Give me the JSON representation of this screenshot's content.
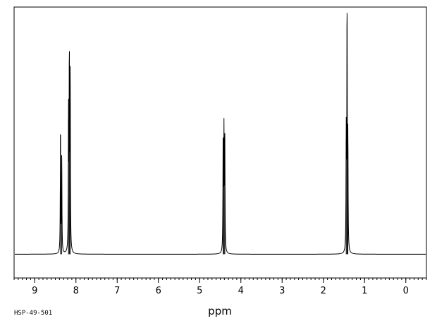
{
  "chart_data": {
    "type": "line",
    "xlabel": "ppm",
    "sample_code": "HSP-49-501",
    "xlim": [
      9.5,
      -0.5
    ],
    "ylim": [
      -0.12,
      1.25
    ],
    "x_ticks": [
      9,
      8,
      7,
      6,
      5,
      4,
      3,
      2,
      1,
      0
    ],
    "x_tick_labels": [
      "9",
      "8",
      "7",
      "6",
      "5",
      "4",
      "3",
      "2",
      "1",
      "0"
    ],
    "minor_tick_step": 0.1,
    "grid": false,
    "baseline": 0,
    "series": [
      {
        "peaks": [
          {
            "x": 8.375,
            "y": 0.605
          },
          {
            "x": 8.345,
            "y": 0.49
          },
          {
            "x": 8.18,
            "y": 0.685
          },
          {
            "x": 8.16,
            "y": 0.98
          },
          {
            "x": 8.14,
            "y": 0.87
          },
          {
            "x": 4.43,
            "y": 0.575
          },
          {
            "x": 4.41,
            "y": 0.595
          },
          {
            "x": 4.39,
            "y": 0.575
          },
          {
            "x": 1.445,
            "y": 0.58
          },
          {
            "x": 1.425,
            "y": 1.22
          },
          {
            "x": 1.405,
            "y": 0.55
          }
        ]
      }
    ]
  }
}
